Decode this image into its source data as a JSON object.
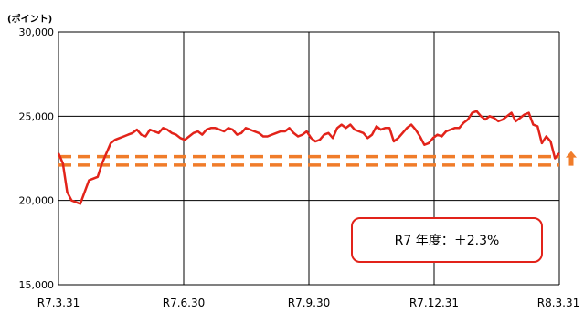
{
  "chart_data": {
    "type": "line",
    "unit_label": "(ポイント)",
    "ylim": [
      15000,
      30000
    ],
    "y_ticks": [
      15000,
      20000,
      25000,
      30000
    ],
    "y_tick_labels": [
      "15,000",
      "20,000",
      "25,000",
      "30,000"
    ],
    "x_tick_labels": [
      "R7.3.31",
      "R7.6.30",
      "R7.9.30",
      "R7.12.31",
      "R8.3.31"
    ],
    "grid": true,
    "series": [
      {
        "color": "#e2231a",
        "values": [
          22800,
          22200,
          20500,
          20000,
          19900,
          19800,
          20500,
          21200,
          21300,
          21400,
          22200,
          22800,
          23400,
          23600,
          23700,
          23800,
          23900,
          24000,
          24200,
          23900,
          23800,
          24200,
          24100,
          24000,
          24300,
          24200,
          24000,
          23900,
          23700,
          23600,
          23800,
          24000,
          24100,
          23900,
          24200,
          24300,
          24300,
          24200,
          24100,
          24300,
          24200,
          23900,
          24000,
          24300,
          24200,
          24100,
          24000,
          23800,
          23800,
          23900,
          24000,
          24100,
          24100,
          24300,
          24000,
          23800,
          23900,
          24100,
          23700,
          23500,
          23600,
          23900,
          24000,
          23700,
          24300,
          24500,
          24300,
          24500,
          24200,
          24100,
          24000,
          23700,
          23900,
          24400,
          24200,
          24300,
          24300,
          23500,
          23700,
          24000,
          24300,
          24500,
          24200,
          23800,
          23300,
          23400,
          23700,
          23900,
          23800,
          24100,
          24200,
          24300,
          24300,
          24600,
          24800,
          25200,
          25300,
          25000,
          24800,
          25000,
          24900,
          24700,
          24800,
          25000,
          25200,
          24700,
          24900,
          25100,
          25200,
          24500,
          24400,
          23400,
          23800,
          23500,
          22500,
          22800
        ]
      }
    ],
    "bands": [
      {
        "value": 22600,
        "color": "#f07c2a"
      },
      {
        "value": 22100,
        "color": "#f07c2a"
      }
    ],
    "up_arrow_color": "#f07c2a"
  },
  "annotation": {
    "text": "R7 年度：＋2.3%"
  }
}
